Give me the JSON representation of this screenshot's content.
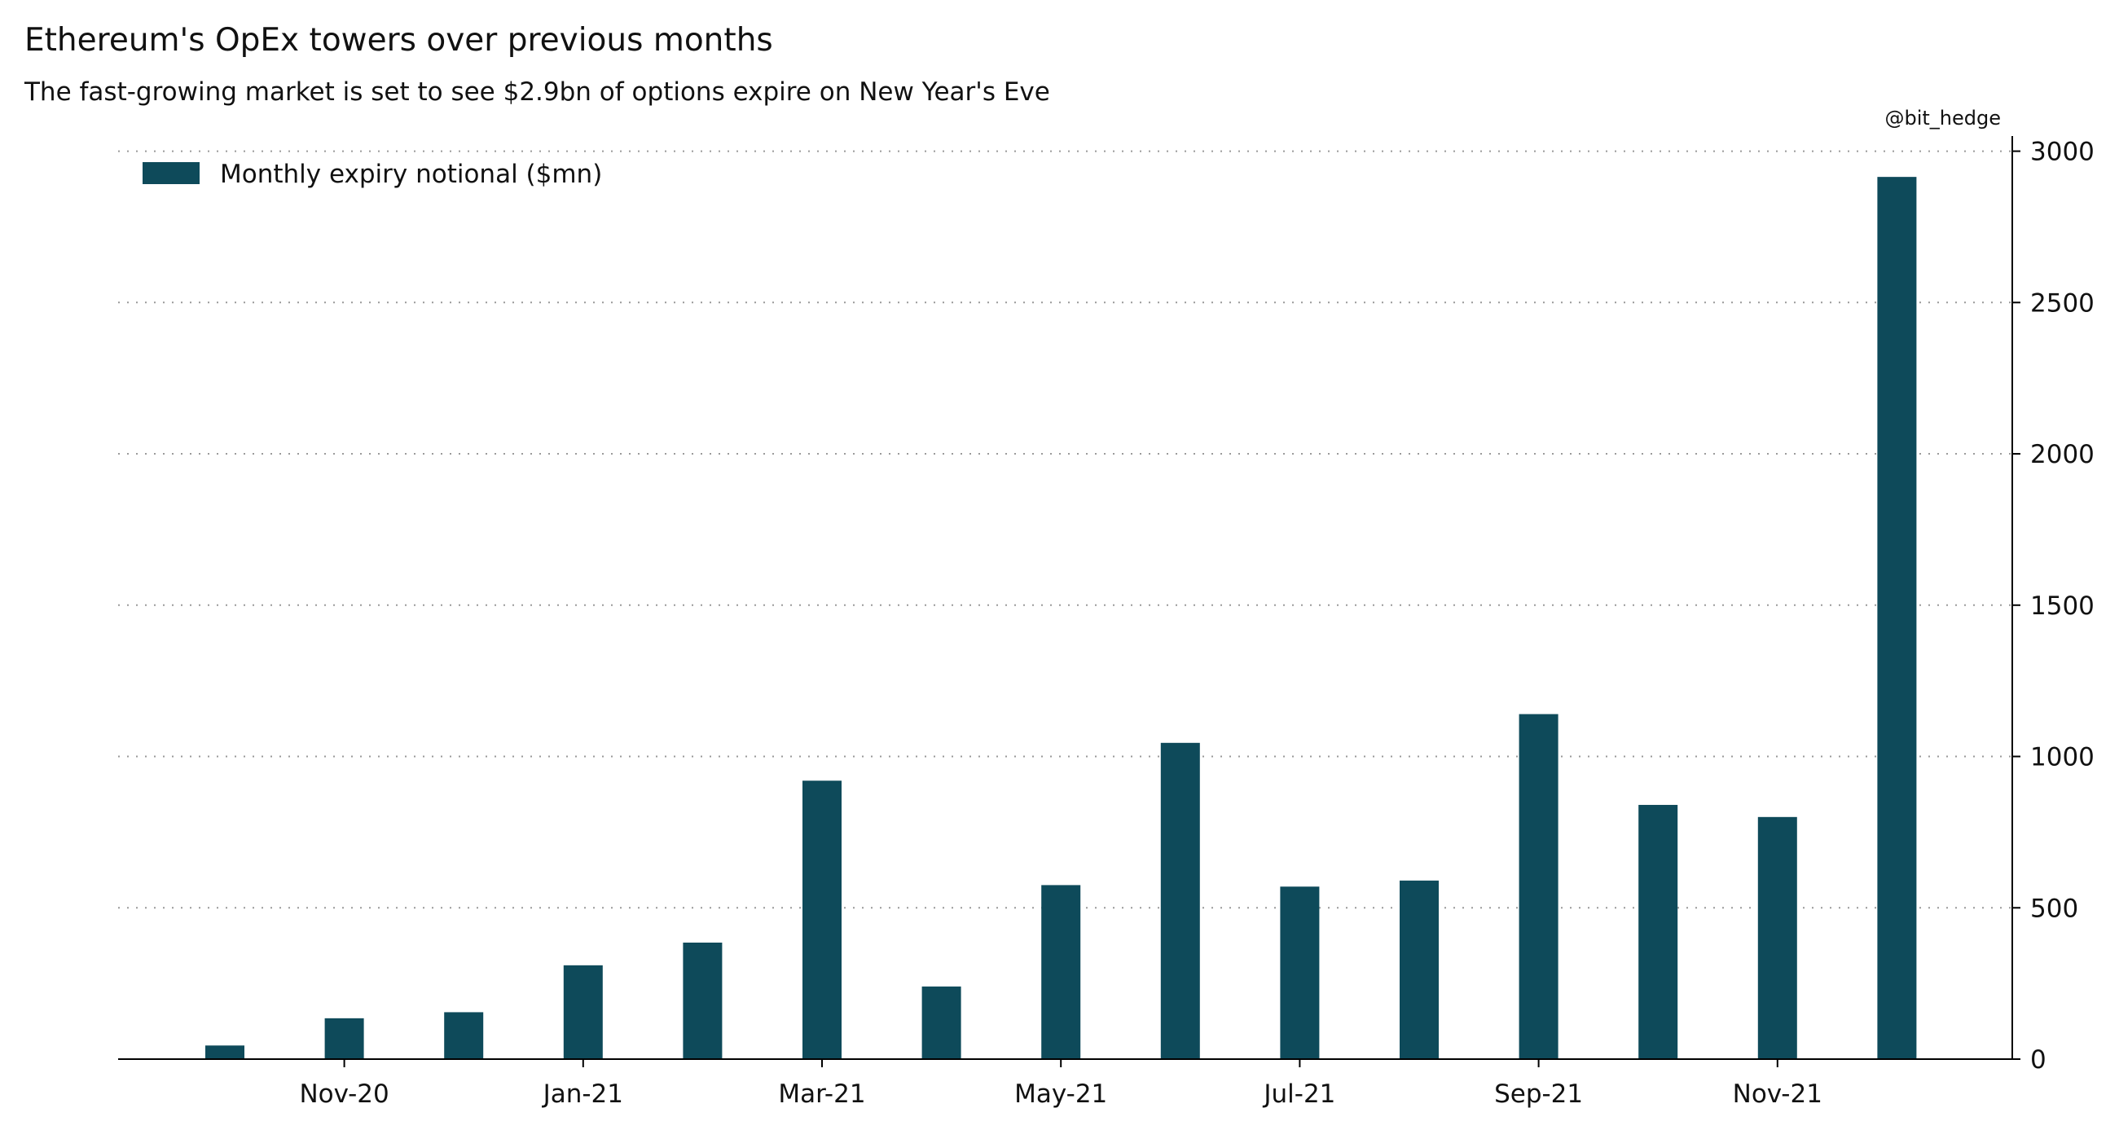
{
  "header": {
    "title": "Ethereum's OpEx towers over previous months",
    "subtitle": "The fast-growing market is set to see $2.9bn of options expire on New Year's Eve",
    "source": "@bit_hedge"
  },
  "chart_data": {
    "type": "bar",
    "series": [
      {
        "name": "Monthly expiry notional ($mn)",
        "color": "#0e4a5a",
        "points": [
          {
            "date": "2020-10",
            "value": 45
          },
          {
            "date": "2020-11",
            "value": 135
          },
          {
            "date": "2020-12",
            "value": 155
          },
          {
            "date": "2021-01",
            "value": 310
          },
          {
            "date": "2021-02",
            "value": 385
          },
          {
            "date": "2021-03",
            "value": 920
          },
          {
            "date": "2021-04",
            "value": 240
          },
          {
            "date": "2021-05",
            "value": 575
          },
          {
            "date": "2021-06",
            "value": 1045
          },
          {
            "date": "2021-07",
            "value": 570
          },
          {
            "date": "2021-08",
            "value": 590
          },
          {
            "date": "2021-09",
            "value": 1140
          },
          {
            "date": "2021-10",
            "value": 840
          },
          {
            "date": "2021-11",
            "value": 800
          },
          {
            "date": "2021-12",
            "value": 2915
          }
        ]
      }
    ],
    "x_axis": {
      "tick_labels": [
        {
          "label": "Nov-20",
          "date": "2020-11"
        },
        {
          "label": "Jan-21",
          "date": "2021-01"
        },
        {
          "label": "Mar-21",
          "date": "2021-03"
        },
        {
          "label": "May-21",
          "date": "2021-05"
        },
        {
          "label": "Jul-21",
          "date": "2021-07"
        },
        {
          "label": "Sep-21",
          "date": "2021-09"
        },
        {
          "label": "Nov-21",
          "date": "2021-11"
        }
      ]
    },
    "y_axis": {
      "position": "right",
      "ylim": [
        0,
        3050
      ],
      "ticks": [
        0,
        500,
        1000,
        1500,
        2000,
        2500,
        3000
      ]
    },
    "grid": "horizontal dotted",
    "legend_position": "top-left"
  }
}
